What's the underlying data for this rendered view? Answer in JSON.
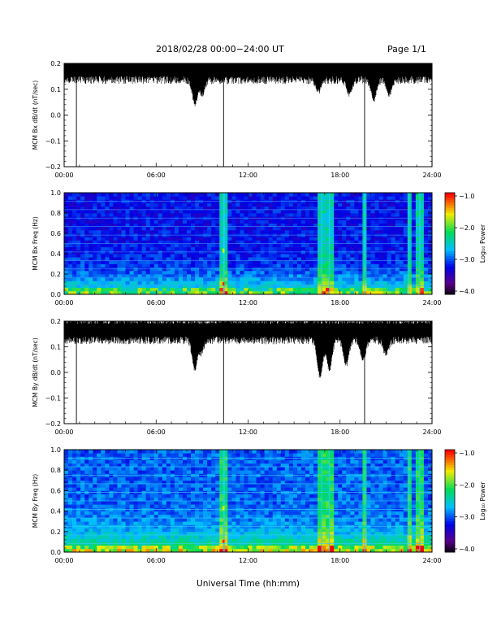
{
  "header": {
    "title": "2018/02/28  00:00−24:00 UT",
    "page": "Page 1/1"
  },
  "xaxis": {
    "label": "Universal Time (hh:mm)",
    "ticks": [
      "00:00",
      "06:00",
      "12:00",
      "18:00",
      "24:00"
    ],
    "range_hours": [
      0,
      24
    ]
  },
  "colors": {
    "trace": "#000000",
    "axis": "#000000",
    "background": "#ffffff"
  },
  "chart_data": [
    {
      "type": "line",
      "ylabel": "MCM Bx dB/dt (nT/sec)",
      "ylim": [
        -0.2,
        0.2
      ],
      "yticks": [
        "0.2",
        "0.1",
        "0.0",
        "−0.1",
        "−0.2"
      ],
      "baseline": 0.17,
      "spikes_hours": [
        0.8,
        10.4,
        19.6
      ],
      "dips": [
        {
          "hour": 8.55,
          "min": 0.03
        },
        {
          "hour": 9.0,
          "min": 0.07
        },
        {
          "hour": 10.2,
          "min": 0.12
        },
        {
          "hour": 16.6,
          "min": 0.08
        },
        {
          "hour": 18.6,
          "min": 0.07
        },
        {
          "hour": 20.2,
          "min": 0.05
        },
        {
          "hour": 21.2,
          "min": 0.07
        }
      ]
    },
    {
      "type": "heatmap",
      "ylabel": "MCM Bx Freq (Hz)",
      "ylim": [
        0.0,
        1.0
      ],
      "yticks": [
        "1.0",
        "0.8",
        "0.6",
        "0.4",
        "0.2",
        "0.0"
      ],
      "colorbar": {
        "label": "Log₁₀ Power",
        "ticks": [
          "−1.0",
          "−2.0",
          "−3.0",
          "−4.0"
        ],
        "range": [
          -4.0,
          -1.0
        ]
      },
      "bright_columns_hours": [
        10.4,
        10.45,
        16.8,
        17.3,
        19.6,
        22.5,
        23.2
      ],
      "harmonic_lines_hz": [
        0.083,
        0.167,
        0.25,
        0.333,
        0.417,
        0.5,
        0.583,
        0.667,
        0.75,
        0.833,
        0.917
      ]
    },
    {
      "type": "line",
      "ylabel": "MCM By dB/dt (nT/sec)",
      "ylim": [
        -0.2,
        0.2
      ],
      "yticks": [
        "0.2",
        "0.1",
        "0.0",
        "−0.1",
        "−0.2"
      ],
      "baseline": 0.16,
      "spikes_hours": [
        0.8,
        10.4,
        19.6
      ],
      "dips": [
        {
          "hour": 8.55,
          "min": -0.01
        },
        {
          "hour": 8.9,
          "min": 0.06
        },
        {
          "hour": 16.7,
          "min": -0.03
        },
        {
          "hour": 17.3,
          "min": 0.0
        },
        {
          "hour": 18.4,
          "min": 0.02
        },
        {
          "hour": 19.5,
          "min": 0.04
        },
        {
          "hour": 21.0,
          "min": 0.06
        }
      ]
    },
    {
      "type": "heatmap",
      "ylabel": "MCM By Freq (Hz)",
      "ylim": [
        0.0,
        1.0
      ],
      "yticks": [
        "1.0",
        "0.8",
        "0.6",
        "0.4",
        "0.2",
        "0.0"
      ],
      "colorbar": {
        "label": "Log₁₀ Power",
        "ticks": [
          "−1.0",
          "−2.0",
          "−3.0",
          "−4.0"
        ],
        "range": [
          -4.0,
          -1.0
        ]
      },
      "bright_columns_hours": [
        10.4,
        10.45,
        16.8,
        17.3,
        19.6,
        22.5,
        23.2
      ],
      "harmonic_lines_hz": [
        0.083,
        0.167,
        0.25,
        0.333,
        0.417,
        0.5,
        0.583,
        0.667,
        0.75,
        0.833,
        0.917
      ]
    }
  ]
}
